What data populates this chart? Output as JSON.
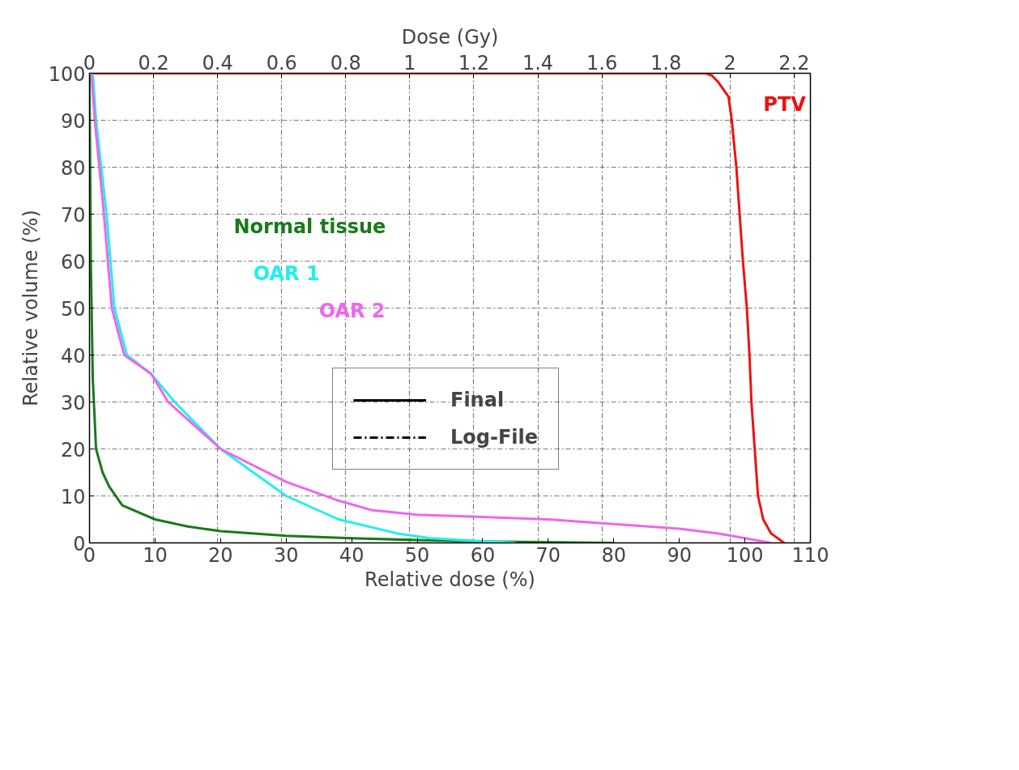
{
  "chart_data": {
    "type": "line",
    "xlabel": "Relative dose (%)",
    "x2label": "Dose (Gy)",
    "ylabel": "Relative volume (%)",
    "xlim": [
      0,
      110
    ],
    "xticks": [
      0,
      10,
      20,
      30,
      40,
      50,
      60,
      70,
      80,
      90,
      100,
      110
    ],
    "x2lim": [
      0,
      2.251
    ],
    "x2ticks": [
      0,
      0.2,
      0.4,
      0.6,
      0.8,
      1,
      1.2,
      1.4,
      1.6,
      1.8,
      2,
      2.2
    ],
    "ylim": [
      0,
      100
    ],
    "yticks": [
      0,
      10,
      20,
      30,
      40,
      50,
      60,
      70,
      80,
      90,
      100
    ],
    "grid": true,
    "line_style": "solid",
    "legend": false,
    "annotations": [
      "Final",
      "Log-File"
    ],
    "series": [
      {
        "name": "PTV",
        "color": "#ee1111",
        "x": [
          0,
          50,
          94,
          95,
          96,
          97,
          97.5,
          98,
          98.7,
          99.2,
          99.7,
          100.3,
          100.7,
          101,
          101.5,
          102,
          102.8,
          104,
          106
        ],
        "values": [
          100,
          100,
          100,
          99.5,
          98,
          96,
          95,
          90,
          80,
          70,
          60,
          50,
          40,
          30,
          20,
          10,
          5,
          2,
          0
        ]
      },
      {
        "name": "Normal tissue",
        "color": "#1a7a1a",
        "x": [
          0,
          0.2,
          0.5,
          1,
          2,
          3,
          5,
          10,
          15,
          20,
          30,
          40,
          50,
          60,
          80
        ],
        "values": [
          100,
          60,
          35,
          20,
          15,
          12,
          8,
          5,
          3.5,
          2.5,
          1.5,
          1,
          0.6,
          0.3,
          0
        ]
      },
      {
        "name": "OAR 1",
        "color": "#22eeee",
        "x": [
          0.5,
          1,
          1.8,
          2.6,
          3.8,
          5.7,
          9.4,
          13,
          20,
          30,
          38,
          47,
          52,
          58,
          65
        ],
        "values": [
          100,
          90,
          80,
          70,
          50,
          40,
          36,
          30,
          20,
          10,
          5,
          2,
          1,
          0.5,
          0
        ]
      },
      {
        "name": "OAR 2",
        "color": "#ee66ee",
        "x": [
          0.3,
          0.8,
          1.5,
          2.2,
          3.4,
          5.3,
          9.4,
          12,
          20,
          30,
          38,
          43,
          50,
          60,
          70,
          80,
          90,
          96,
          100,
          104
        ],
        "values": [
          100,
          90,
          80,
          70,
          50,
          40,
          36,
          30,
          20,
          13,
          9,
          7,
          6,
          5.5,
          5,
          4,
          3,
          2,
          1,
          0
        ]
      }
    ]
  }
}
